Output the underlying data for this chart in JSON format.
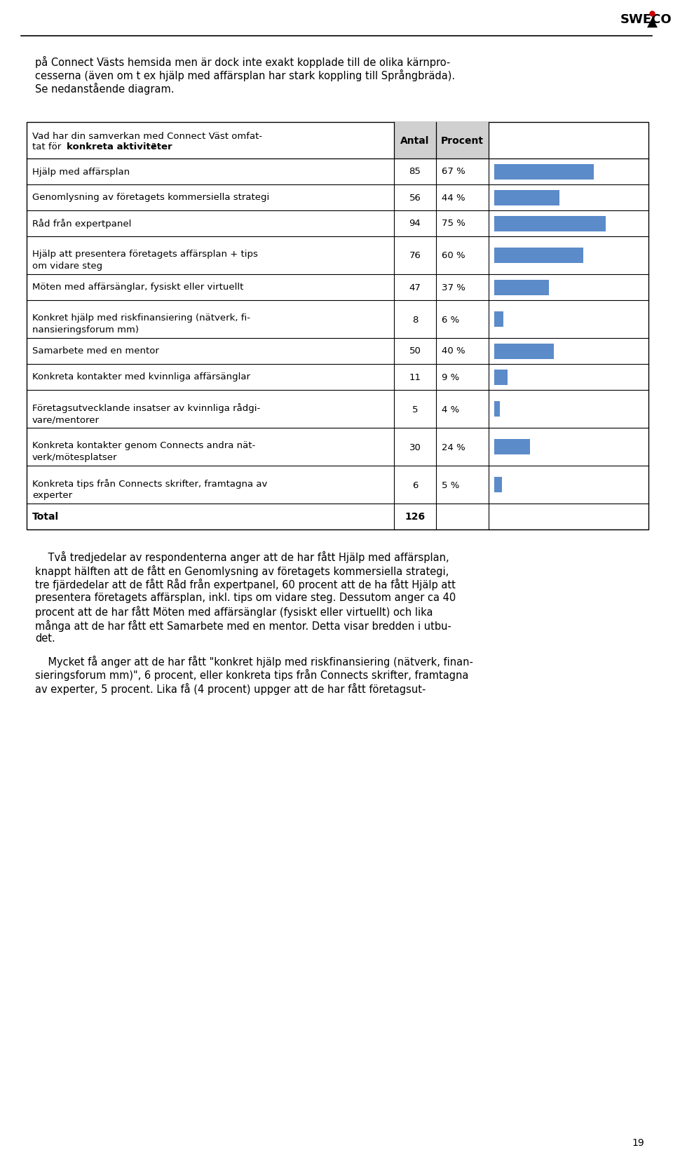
{
  "col_antal": "Antal",
  "col_procent": "Procent",
  "rows": [
    {
      "label": "Hjälp med affärsplan",
      "antal": 85,
      "procent": 67,
      "procent_str": "67 %",
      "double": false
    },
    {
      "label": "Genomlysning av företagets kommersiella strategi",
      "antal": 56,
      "procent": 44,
      "procent_str": "44 %",
      "double": false
    },
    {
      "label": "Råd från expertpanel",
      "antal": 94,
      "procent": 75,
      "procent_str": "75 %",
      "double": false
    },
    {
      "label": "Hjälp att presentera företagets affärsplan + tips\nom vidare steg",
      "antal": 76,
      "procent": 60,
      "procent_str": "60 %",
      "double": true
    },
    {
      "label": "Möten med affärsänglar, fysiskt eller virtuellt",
      "antal": 47,
      "procent": 37,
      "procent_str": "37 %",
      "double": false
    },
    {
      "label": "Konkret hjälp med riskfinansiering (nätverk, fi-\nnansieringsforum mm)",
      "antal": 8,
      "procent": 6,
      "procent_str": "6 %",
      "double": true
    },
    {
      "label": "Samarbete med en mentor",
      "antal": 50,
      "procent": 40,
      "procent_str": "40 %",
      "double": false
    },
    {
      "label": "Konkreta kontakter med kvinnliga affärsänglar",
      "antal": 11,
      "procent": 9,
      "procent_str": "9 %",
      "double": false
    },
    {
      "label": "Företagsutvecklande insatser av kvinnliga rådgi-\nvare/mentorer",
      "antal": 5,
      "procent": 4,
      "procent_str": "4 %",
      "double": true
    },
    {
      "label": "Konkreta kontakter genom Connects andra nät-\nverk/mötesplatser",
      "antal": 30,
      "procent": 24,
      "procent_str": "24 %",
      "double": true
    },
    {
      "label": "Konkreta tips från Connects skrifter, framtagna av\nexperter",
      "antal": 6,
      "procent": 5,
      "procent_str": "5 %",
      "double": true
    }
  ],
  "total_label": "Total",
  "total_antal": "126",
  "bar_color": "#5B8BC9",
  "header_bg": "#D0D0D0",
  "border_color": "#555555",
  "background_color": "#FFFFFF",
  "intro_lines": [
    "på Connect Västs hemsida men är dock inte exakt kopplade till de olika kärnpro-",
    "cesserna (även om t ex hjälp med affärsplan har stark koppling till Språngbräda).",
    "Se nedanstående diagram."
  ],
  "body_lines_1": [
    "    Två tredjedelar av respondenterna anger att de har fått Hjälp med affärsplan,",
    "knappt hälften att de fått en Genomlysning av företagets kommersiella strategi,",
    "tre fjärdedelar att de fått Råd från expertpanel, 60 procent att de ha fått Hjälp att",
    "presentera företagets affärsplan, inkl. tips om vidare steg. Dessutom anger ca 40",
    "procent att de har fått Möten med affärsänglar (fysiskt eller virtuellt) och lika",
    "många att de har fått ett Samarbete med en mentor. Detta visar bredden i utbu-",
    "det."
  ],
  "body_lines_2": [
    "    Mycket få anger att de har fått \"konkret hjälp med riskfinansiering (nätverk, finan-",
    "sieringsforum mm)\", 6 procent, eller konkreta tips från Connects skrifter, framtagna",
    "av experter, 5 procent. Lika få (4 procent) uppger att de har fått företagsut-"
  ],
  "page_number": "19"
}
